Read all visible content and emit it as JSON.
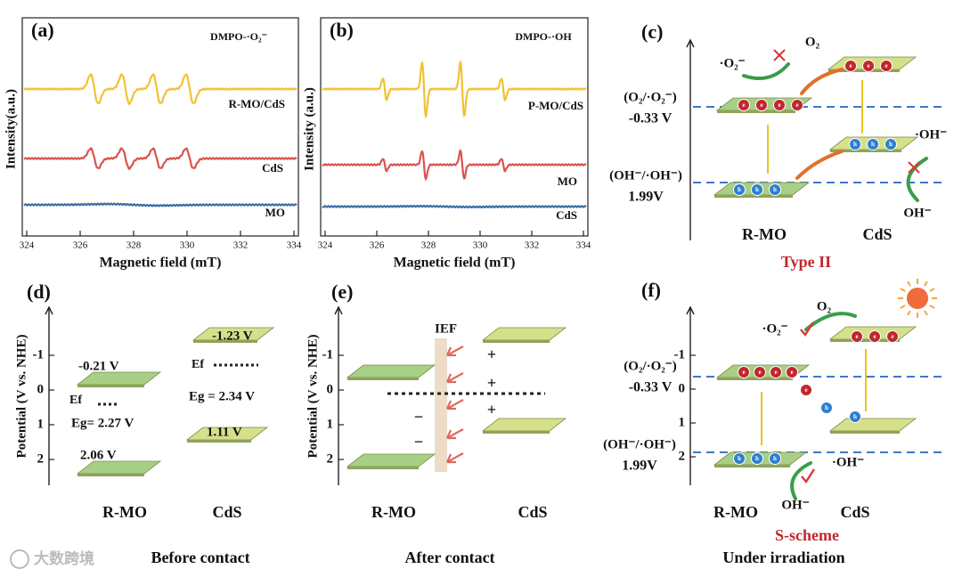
{
  "panels": {
    "a": {
      "label": "(a)",
      "probe": "DMPO-·O₂⁻",
      "y_label": "Intensity(a.u.)",
      "x_label": "Magnetic field (mT)",
      "xticks": [
        324,
        326,
        328,
        330,
        332,
        334
      ],
      "traces": [
        "R-MO/CdS",
        "CdS",
        "MO"
      ]
    },
    "b": {
      "label": "(b)",
      "probe": "DMPO-·OH",
      "y_label": "Intensity (a.u.)",
      "x_label": "Magnetic field (mT)",
      "xticks": [
        324,
        326,
        328,
        330,
        332,
        334
      ],
      "traces": [
        "P-MO/CdS",
        "MO",
        "CdS"
      ]
    },
    "c": {
      "label": "(c)",
      "couple1": "(O₂/·O₂⁻)",
      "potential1": "-0.33 V",
      "couple2": "(OH⁻/·OH⁻)",
      "potential2": "1.99V",
      "radical1": "·O₂⁻",
      "oxygen": "O₂",
      "radical2": "·OH⁻",
      "hydroxide": "OH⁻",
      "material1": "R-MO",
      "material2": "CdS",
      "scheme": "Type II"
    },
    "d": {
      "label": "(d)",
      "y_label": "Potential (V vs. NHE)",
      "yticks": [
        -1,
        0,
        1,
        2
      ],
      "rmo_cb": "-0.21 V",
      "rmo_ef": "Ef",
      "rmo_eg": "Eg= 2.27 V",
      "rmo_vb": "2.06 V",
      "cds_cb": "-1.23 V",
      "cds_ef": "Ef",
      "cds_eg": "Eg = 2.34 V",
      "cds_vb": "1.11 V",
      "material1": "R-MO",
      "material2": "CdS",
      "caption": "Before contact"
    },
    "e": {
      "label": "(e)",
      "y_label": "Potential (V vs. NHE)",
      "yticks": [
        -1,
        0,
        1,
        2
      ],
      "field": "IEF",
      "plus": "+",
      "minus": "−",
      "material1": "R-MO",
      "material2": "CdS",
      "caption": "After contact"
    },
    "f": {
      "label": "(f)",
      "yticks": [
        -1,
        0,
        1,
        2
      ],
      "couple1": "(O₂/·O₂⁻)",
      "potential1": "-0.33 V",
      "couple2": "(OH⁻/·OH⁻)",
      "potential2": "1.99V",
      "oxygen": "O₂",
      "radical1": "·O₂⁻",
      "radical2": "·OH⁻",
      "hydroxide": "OH⁻",
      "material1": "R-MO",
      "material2": "CdS",
      "scheme": "S-scheme",
      "caption": "Under irradiation"
    }
  },
  "carriers": {
    "electron": "e",
    "hole": "h"
  },
  "watermark": "大数跨境"
}
